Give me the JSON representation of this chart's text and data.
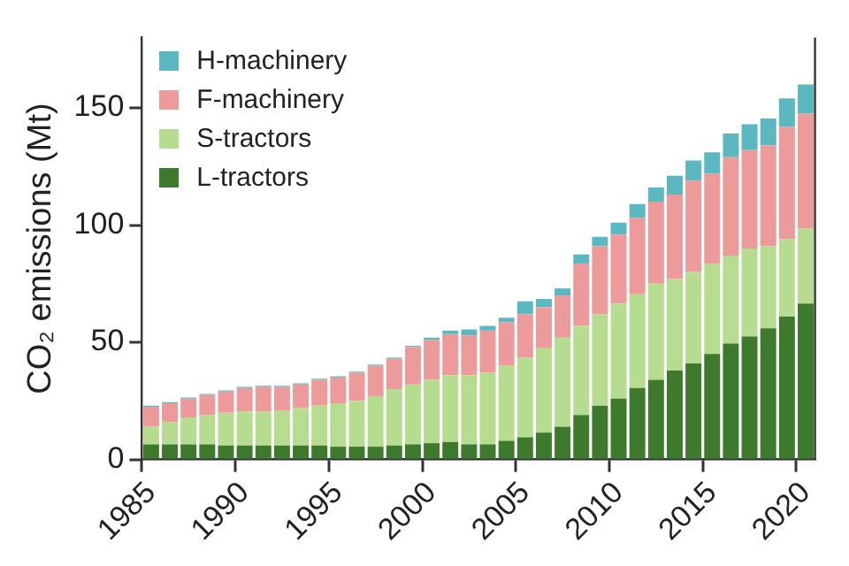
{
  "chart_data": {
    "type": "bar",
    "stacked": true,
    "ylabel": "CO₂ emissions (Mt)",
    "categories": [
      "1985",
      null,
      null,
      null,
      null,
      "1990",
      null,
      null,
      null,
      null,
      "1995",
      null,
      null,
      null,
      null,
      "2000",
      null,
      null,
      null,
      null,
      "2005",
      null,
      null,
      null,
      null,
      "2010",
      null,
      null,
      null,
      null,
      "2015",
      null,
      null,
      null,
      null,
      "2020"
    ],
    "series": [
      {
        "name": "L-tractors",
        "color": "#3d7a2e",
        "values": [
          6.5,
          6.5,
          6.5,
          6.5,
          6,
          6,
          6,
          6,
          6,
          6,
          5.5,
          5.5,
          5.5,
          6,
          6.5,
          7,
          7.5,
          6.5,
          6.5,
          8,
          9.5,
          11.5,
          14,
          19,
          23,
          26,
          30.5,
          34,
          38,
          41,
          45,
          49.5,
          52.5,
          56,
          61,
          66.5
        ]
      },
      {
        "name": "S-tractors",
        "color": "#b5dc8f",
        "values": [
          7.5,
          9.5,
          11.5,
          12.5,
          14,
          14.5,
          14.5,
          15,
          16,
          17,
          18.5,
          19.5,
          21.5,
          24,
          25.5,
          27,
          28.5,
          29.5,
          30.5,
          32,
          34,
          36,
          38,
          38,
          39,
          40.5,
          40,
          41,
          39,
          39,
          38.5,
          37.5,
          37.5,
          35,
          33,
          32
        ]
      },
      {
        "name": "F-machinery",
        "color": "#ec9a9a",
        "values": [
          8.5,
          8,
          8,
          8.5,
          9,
          10,
          10.5,
          10,
          10,
          11,
          11,
          12,
          13,
          13,
          16,
          17,
          17.5,
          17,
          18,
          18.5,
          18.5,
          17.5,
          18,
          26.5,
          29,
          29.5,
          32.5,
          35,
          36,
          39,
          38.5,
          42,
          42,
          43,
          48,
          49
        ]
      },
      {
        "name": "H-machinery",
        "color": "#5bb8c0",
        "values": [
          0.5,
          0.5,
          0.5,
          0.5,
          0.5,
          0.5,
          0.5,
          0.5,
          0.5,
          0.5,
          0.5,
          0.5,
          0.5,
          0.5,
          0.5,
          1,
          1.5,
          2.5,
          2,
          2,
          5.5,
          3.5,
          3,
          4,
          4,
          5,
          6,
          6,
          8,
          8.5,
          9,
          10,
          11,
          11.5,
          12,
          12.5
        ]
      }
    ],
    "ylim": [
      0,
      180
    ],
    "yticks": [
      0,
      50,
      100,
      150
    ],
    "legend": "top left"
  }
}
